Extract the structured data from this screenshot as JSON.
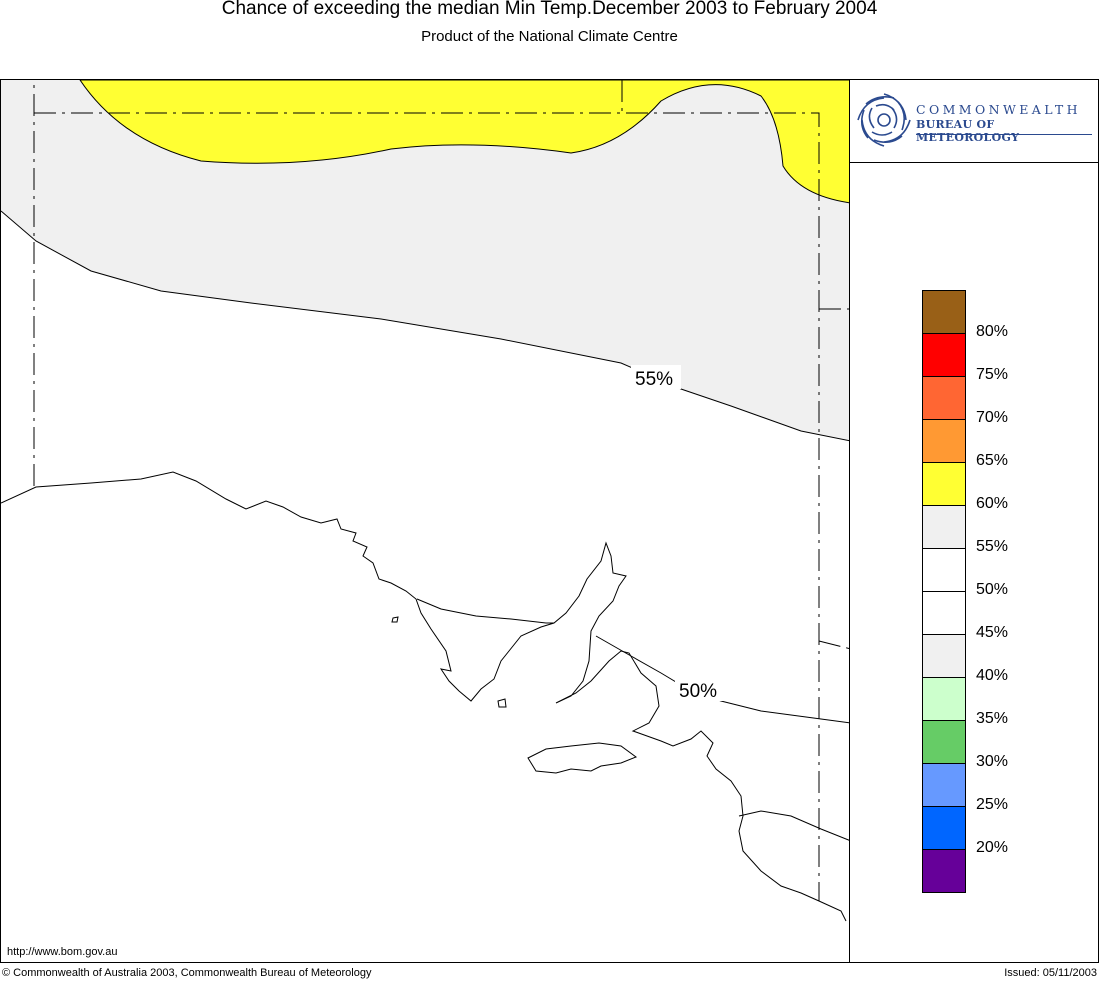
{
  "header": {
    "title": "Chance of exceeding the median Min Temp.December 2003 to February 2004",
    "subtitle": "Product of the National Climate Centre"
  },
  "logo": {
    "line1": "COMMONWEALTH",
    "line2": "BUREAU OF METEOROLOGY",
    "brand_color": "#2b4a8f"
  },
  "map": {
    "region": "South Australia",
    "contour_labels": [
      "55%",
      "50%"
    ],
    "shading_colors": {
      "band_60_65": "#ffff33",
      "band_55_60": "#f0f0f0",
      "band_45_55": "#ffffff"
    }
  },
  "legend": {
    "labels": [
      "80%",
      "75%",
      "70%",
      "65%",
      "60%",
      "55%",
      "50%",
      "45%",
      "40%",
      "35%",
      "30%",
      "25%",
      "20%"
    ],
    "colors": [
      "#996017",
      "#ff0000",
      "#ff6633",
      "#ff9933",
      "#ffff33",
      "#f0f0f0",
      "#ffffff",
      "#ffffff",
      "#f0f0f0",
      "#ccffcc",
      "#66cc66",
      "#6699ff",
      "#0066ff",
      "#660099"
    ]
  },
  "footer": {
    "url": "http://www.bom.gov.au",
    "copyright": "© Commonwealth of Australia 2003, Commonwealth Bureau of Meteorology",
    "issued": "Issued: 05/11/2003"
  }
}
